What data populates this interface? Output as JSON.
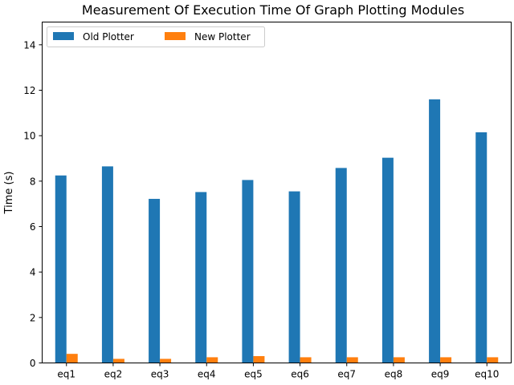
{
  "chart_data": {
    "type": "bar",
    "title": "Measurement Of Execution Time Of Graph Plotting Modules",
    "xlabel": "",
    "ylabel": "Time (s)",
    "categories": [
      "eq1",
      "eq2",
      "eq3",
      "eq4",
      "eq5",
      "eq6",
      "eq7",
      "eq8",
      "eq9",
      "eq10"
    ],
    "series": [
      {
        "name": "Old Plotter",
        "color": "#1f77b4",
        "values": [
          8.25,
          8.65,
          7.22,
          7.52,
          8.05,
          7.55,
          8.58,
          9.03,
          11.6,
          10.15
        ]
      },
      {
        "name": "New Plotter",
        "color": "#ff7f0e",
        "values": [
          0.4,
          0.18,
          0.18,
          0.25,
          0.3,
          0.25,
          0.25,
          0.25,
          0.25,
          0.25
        ]
      }
    ],
    "ylim": [
      0,
      15
    ],
    "yticks": [
      0,
      2,
      4,
      6,
      8,
      10,
      12,
      14
    ],
    "grid": false,
    "legend": {
      "placement": "top-left",
      "columns": 2
    }
  }
}
